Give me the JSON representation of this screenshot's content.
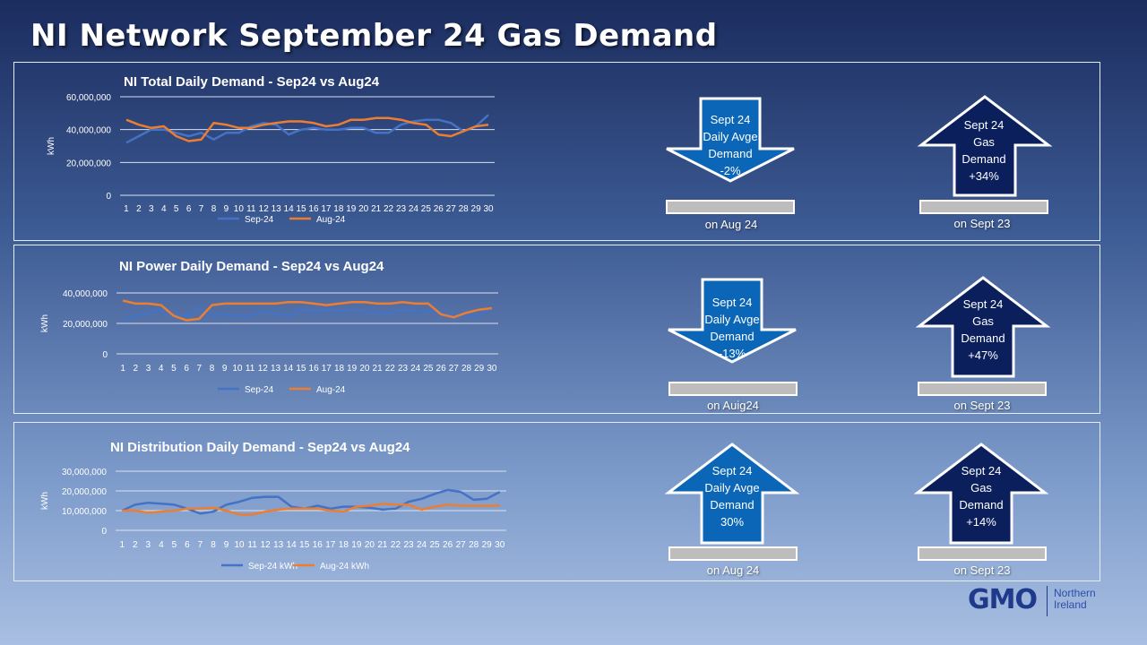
{
  "title": "NI Network September 24 Gas Demand",
  "colors": {
    "sep": "#4472c4",
    "aug": "#ed7d31",
    "arrow_medium": "#0b66b8",
    "arrow_dark": "#0a1f5c"
  },
  "arrows": [
    {
      "direction": "down",
      "style": "medium",
      "lines": [
        "Sept 24",
        "Daily Avge",
        "Demand",
        "-2%"
      ],
      "caption": "on Aug 24"
    },
    {
      "direction": "up",
      "style": "dark",
      "lines": [
        "Sept 24",
        "Gas",
        "Demand",
        "+34%"
      ],
      "caption": "on Sept 23"
    },
    {
      "direction": "down",
      "style": "medium",
      "lines": [
        "Sept 24",
        "Daily Avge",
        "Demand",
        "-13%"
      ],
      "caption": "on Auig24"
    },
    {
      "direction": "up",
      "style": "dark",
      "lines": [
        "Sept 24",
        "Gas",
        "Demand",
        "+47%"
      ],
      "caption": "on Sept 23"
    },
    {
      "direction": "up",
      "style": "medium",
      "lines": [
        "Sept 24",
        "Daily Avge",
        "Demand",
        "30%"
      ],
      "caption": "on Aug 24"
    },
    {
      "direction": "up",
      "style": "dark",
      "lines": [
        "Sept 24",
        "Gas",
        "Demand",
        "+14%"
      ],
      "caption": "on Sept 23"
    }
  ],
  "logo": {
    "mark": "GMO",
    "sub_line1": "Northern",
    "sub_line2": "Ireland"
  },
  "chart_data": [
    {
      "type": "line",
      "title": "NI Total Daily Demand - Sep24 vs Aug24",
      "ylabel": "kWh",
      "xlabel": "",
      "ylim": [
        0,
        60000000
      ],
      "yticks": [
        "0",
        "20,000,000",
        "40,000,000",
        "60,000,000"
      ],
      "ytick_values": [
        0,
        20000000,
        40000000,
        60000000
      ],
      "x": [
        "1",
        "2",
        "3",
        "4",
        "5",
        "6",
        "7",
        "8",
        "9",
        "10",
        "11",
        "12",
        "13",
        "14",
        "15",
        "16",
        "17",
        "18",
        "19",
        "20",
        "21",
        "22",
        "23",
        "24",
        "25",
        "26",
        "27",
        "28",
        "29",
        "30"
      ],
      "grid": true,
      "legend_position": "bottom",
      "series": [
        {
          "name": "Sep-24",
          "values": [
            32000000,
            36000000,
            40000000,
            40000000,
            38000000,
            36000000,
            38000000,
            34000000,
            38000000,
            38000000,
            42000000,
            44000000,
            43000000,
            37000000,
            40000000,
            41000000,
            40000000,
            40000000,
            41000000,
            41000000,
            38000000,
            38000000,
            43000000,
            45000000,
            46000000,
            46000000,
            44000000,
            39000000,
            42000000,
            49000000
          ]
        },
        {
          "name": "Aug-24",
          "values": [
            46000000,
            43000000,
            41000000,
            42000000,
            36000000,
            33000000,
            34000000,
            44000000,
            43000000,
            41000000,
            41000000,
            43000000,
            44000000,
            45000000,
            45000000,
            44000000,
            42000000,
            43000000,
            46000000,
            46000000,
            47000000,
            47000000,
            46000000,
            44000000,
            43000000,
            37000000,
            36000000,
            39000000,
            42000000,
            43000000
          ]
        }
      ]
    },
    {
      "type": "line",
      "title": "NI Power Daily Demand - Sep24 vs Aug24",
      "ylabel": "kWh",
      "xlabel": "",
      "ylim": [
        0,
        40000000
      ],
      "yticks": [
        "0",
        "20,000,000",
        "40,000,000"
      ],
      "ytick_values": [
        0,
        20000000,
        40000000
      ],
      "x": [
        "1",
        "2",
        "3",
        "4",
        "5",
        "6",
        "7",
        "8",
        "9",
        "10",
        "11",
        "12",
        "13",
        "14",
        "15",
        "16",
        "17",
        "18",
        "19",
        "20",
        "21",
        "22",
        "23",
        "24",
        "25",
        "26",
        "27",
        "28",
        "29",
        "30"
      ],
      "grid": true,
      "legend_position": "bottom",
      "series": [
        {
          "name": "Sep-24",
          "values": [
            22000000,
            25000000,
            27000000,
            29000000,
            25000000,
            25000000,
            30000000,
            25000000,
            26000000,
            25000000,
            25000000,
            28000000,
            27000000,
            25000000,
            29000000,
            28000000,
            29000000,
            28000000,
            29000000,
            28000000,
            27000000,
            27000000,
            29000000,
            28000000,
            28000000,
            27000000,
            25000000,
            25000000,
            25000000,
            30000000
          ]
        },
        {
          "name": "Aug-24",
          "values": [
            35000000,
            33000000,
            33000000,
            32000000,
            25000000,
            22000000,
            23000000,
            32000000,
            33000000,
            33000000,
            33000000,
            33000000,
            33000000,
            34000000,
            34000000,
            33000000,
            32000000,
            33000000,
            34000000,
            34000000,
            33000000,
            33000000,
            34000000,
            33000000,
            33000000,
            26000000,
            24000000,
            27000000,
            29000000,
            30000000
          ]
        }
      ]
    },
    {
      "type": "line",
      "title": "NI Distribution Daily Demand - Sep24 vs Aug24",
      "ylabel": "kWh",
      "xlabel": "",
      "ylim": [
        0,
        30000000
      ],
      "yticks": [
        "0",
        "10,000,000",
        "20,000,000",
        "30,000,000"
      ],
      "ytick_values": [
        0,
        10000000,
        20000000,
        30000000
      ],
      "x": [
        "1",
        "2",
        "3",
        "4",
        "5",
        "6",
        "7",
        "8",
        "9",
        "10",
        "11",
        "12",
        "13",
        "14",
        "15",
        "16",
        "17",
        "18",
        "19",
        "20",
        "21",
        "22",
        "23",
        "24",
        "25",
        "26",
        "27",
        "28",
        "29",
        "30"
      ],
      "grid": true,
      "legend_position": "bottom",
      "series": [
        {
          "name": "Sep-24 kWh",
          "values": [
            10000000,
            13000000,
            14000000,
            13500000,
            13000000,
            11000000,
            8500000,
            9500000,
            13000000,
            14500000,
            16500000,
            17000000,
            17000000,
            12000000,
            11000000,
            12500000,
            11000000,
            12000000,
            12000000,
            11500000,
            10500000,
            11000000,
            14500000,
            16000000,
            18500000,
            20500000,
            19500000,
            15500000,
            16000000,
            19500000
          ]
        },
        {
          "name": "Aug-24 kWh",
          "values": [
            10000000,
            10000000,
            9000000,
            9500000,
            10000000,
            11000000,
            11000000,
            11500000,
            10000000,
            8000000,
            8000000,
            9500000,
            10500000,
            11000000,
            11000000,
            11000000,
            10000000,
            9500000,
            12000000,
            12500000,
            13500000,
            13000000,
            13000000,
            10500000,
            12000000,
            13000000,
            12500000,
            12500000,
            12500000,
            12500000
          ]
        }
      ]
    }
  ]
}
